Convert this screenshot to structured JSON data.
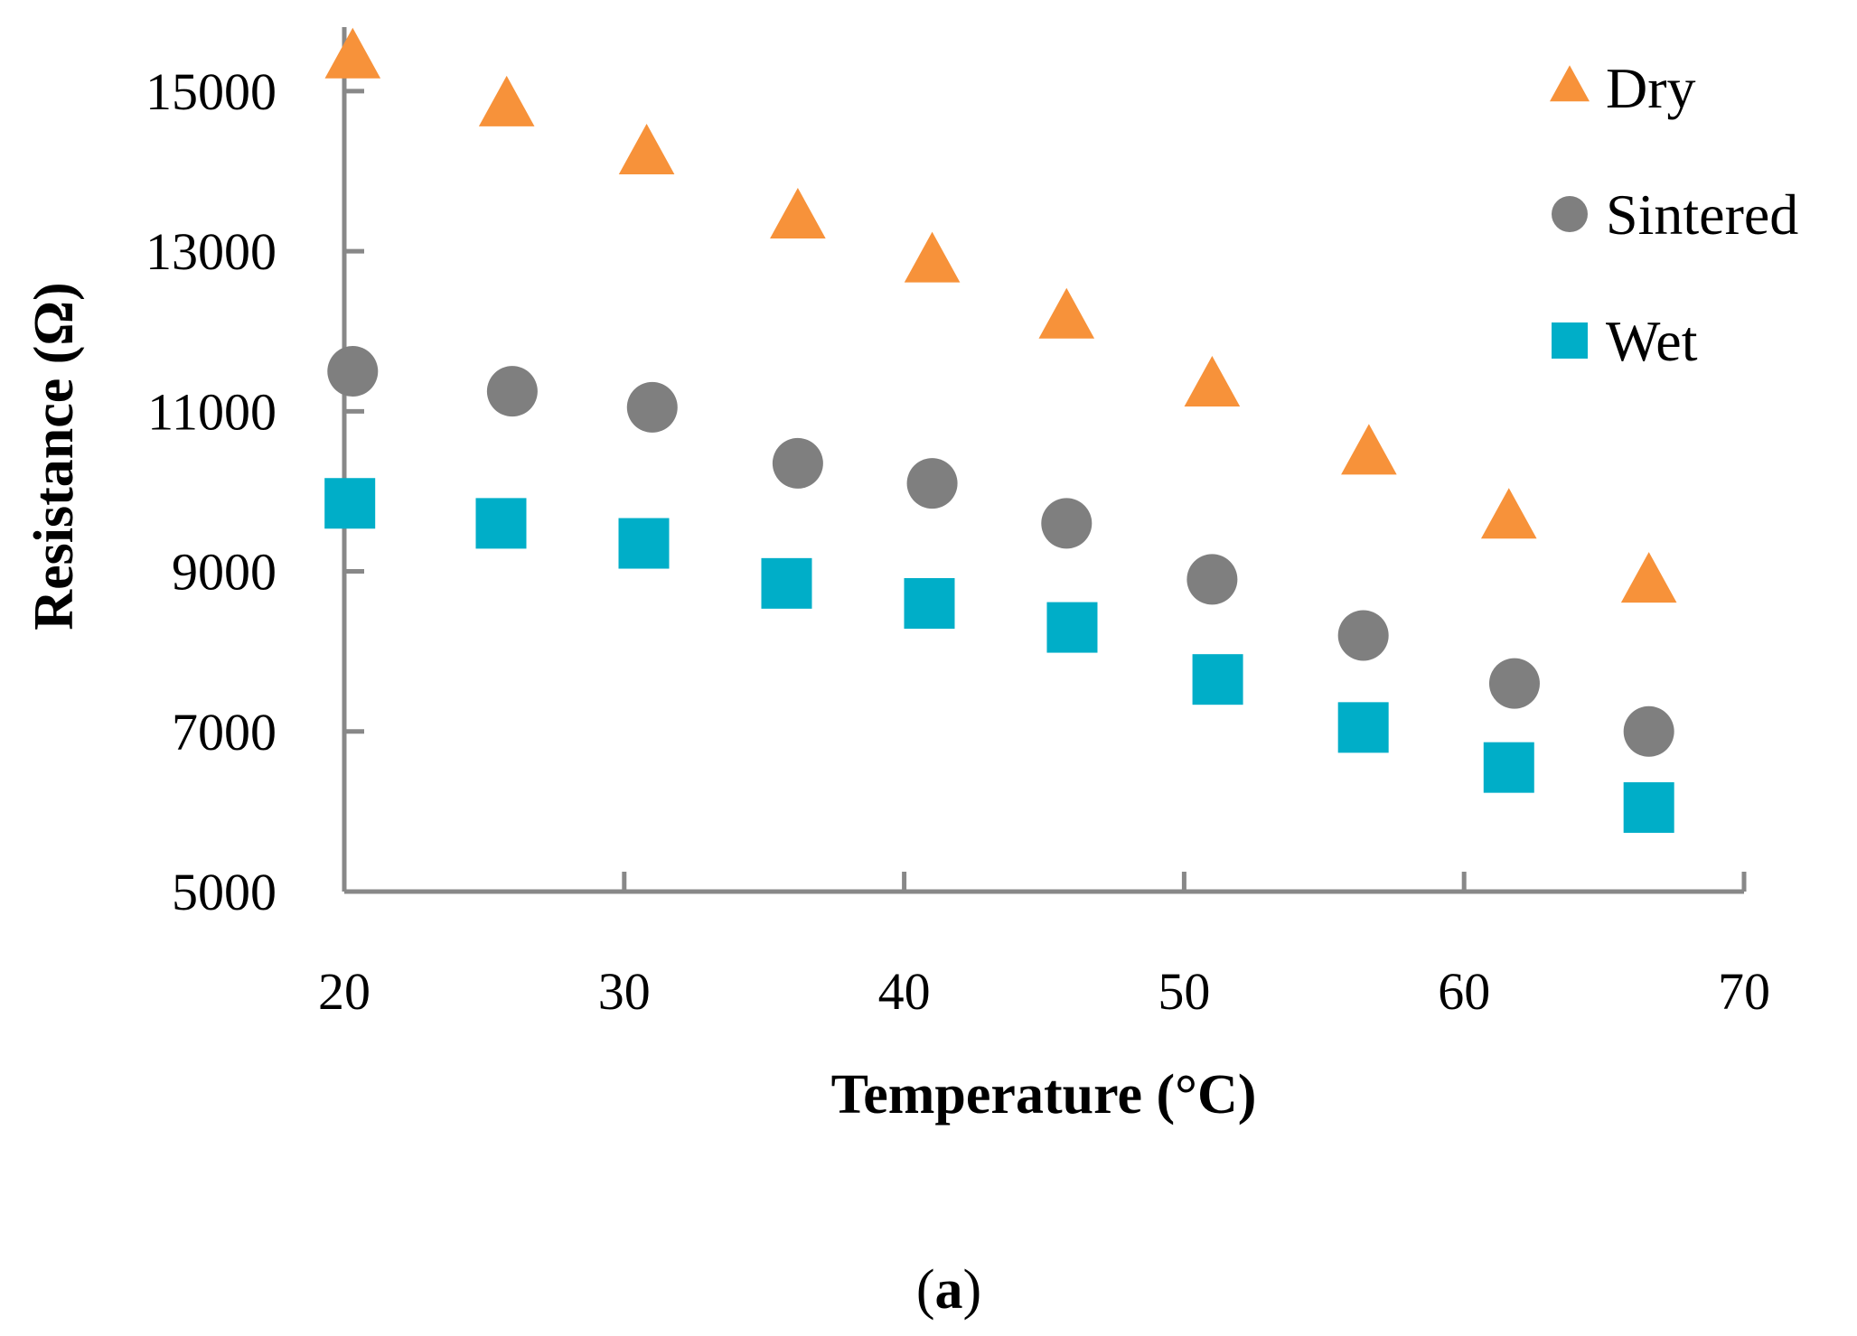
{
  "chart_data": {
    "type": "scatter",
    "title": "",
    "caption_open": "(",
    "caption_letter": "a",
    "caption_close": ")",
    "xlabel": "Temperature (°C)",
    "ylabel": "Resistance (Ω)",
    "xlim": [
      20,
      70
    ],
    "ylim": [
      5000,
      15800
    ],
    "x_ticks": [
      20,
      30,
      40,
      50,
      60,
      70
    ],
    "y_ticks": [
      5000,
      7000,
      9000,
      11000,
      13000,
      15000
    ],
    "grid": false,
    "legend_position": "top-right",
    "series": [
      {
        "name": "Dry",
        "marker": "triangle",
        "color": "#F7923A",
        "x": [
          20.3,
          25.8,
          30.8,
          36.2,
          41.0,
          45.8,
          51.0,
          56.6,
          61.6,
          66.6
        ],
        "y": [
          15400,
          14800,
          14200,
          13400,
          12850,
          12150,
          11300,
          10450,
          9650,
          8850
        ]
      },
      {
        "name": "Sintered",
        "marker": "circle",
        "color": "#7F7F7F",
        "x": [
          20.3,
          26.0,
          31.0,
          36.2,
          41.0,
          45.8,
          51.0,
          56.4,
          61.8,
          66.6
        ],
        "y": [
          11500,
          11250,
          11050,
          10350,
          10100,
          9600,
          8900,
          8200,
          7600,
          7000
        ]
      },
      {
        "name": "Wet",
        "marker": "square",
        "color": "#00AEC8",
        "x": [
          20.2,
          25.6,
          30.7,
          35.8,
          40.9,
          46.0,
          51.2,
          56.4,
          61.6,
          66.6
        ],
        "y": [
          9850,
          9600,
          9350,
          8850,
          8600,
          8300,
          7650,
          7050,
          6550,
          6050
        ]
      }
    ]
  }
}
